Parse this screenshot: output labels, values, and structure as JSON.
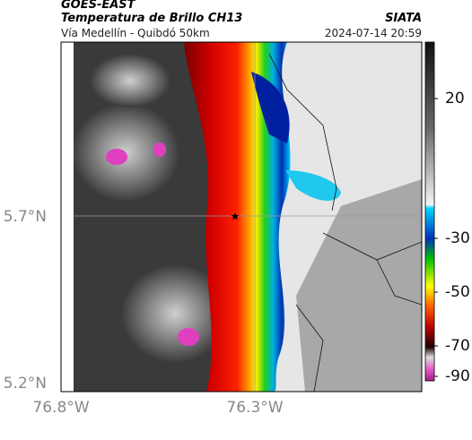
{
  "header": {
    "source": "GOES-EAST",
    "product": "Temperatura de Brillo CH13",
    "location": "Vía Medellín - Quibdó 50km",
    "organization": "SIATA",
    "datetime": "2024-07-14 20:59"
  },
  "axes": {
    "lat_labels": [
      "5.7°N",
      "5.2°N"
    ],
    "lon_labels": [
      "76.8°W",
      "76.3°W"
    ]
  },
  "colorbar": {
    "ticks": [
      "20",
      "-30",
      "-50",
      "-70",
      "-90"
    ]
  }
}
